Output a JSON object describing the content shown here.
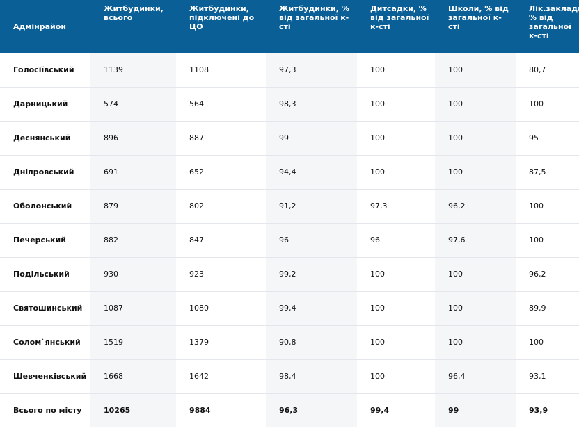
{
  "headers": [
    "Адмінрайон",
    "Житбудинки, всього",
    "Житбудинки, підключені до ЦО",
    "Житбудинки, % від загальної к-сті",
    "Дитсадки, % від загальної к-сті",
    "Школи, % від загальної к-сті",
    "Лік.заклади, % від загальної к-сті"
  ],
  "rows": [
    [
      "Голосіївський",
      "1139",
      "1108",
      "97,3",
      "100",
      "100",
      "80,7"
    ],
    [
      "Дарницький",
      "574",
      "564",
      "98,3",
      "100",
      "100",
      "100"
    ],
    [
      "Деснянський",
      "896",
      "887",
      "99",
      "100",
      "100",
      "95"
    ],
    [
      "Дніпровський",
      "691",
      "652",
      "94,4",
      "100",
      "100",
      "87,5"
    ],
    [
      "Оболонський",
      "879",
      "802",
      "91,2",
      "97,3",
      "96,2",
      "100"
    ],
    [
      "Печерський",
      "882",
      "847",
      "96",
      "96",
      "97,6",
      "100"
    ],
    [
      "Подільський",
      "930",
      "923",
      "99,2",
      "100",
      "100",
      "96,2"
    ],
    [
      "Святошинський",
      "1087",
      "1080",
      "99,4",
      "100",
      "100",
      "89,9"
    ],
    [
      "Солом`янський",
      "1519",
      "1379",
      "90,8",
      "100",
      "100",
      "100"
    ],
    [
      "Шевченківський",
      "1668",
      "1642",
      "98,4",
      "100",
      "96,4",
      "93,1"
    ]
  ],
  "total": [
    "Всього по місту",
    "10265",
    "9884",
    "96,3",
    "99,4",
    "99",
    "93,9"
  ],
  "colors": {
    "header_bg": "#0a5f97",
    "shade_bg": "#f5f6f8",
    "border": "#e3e6ea"
  }
}
